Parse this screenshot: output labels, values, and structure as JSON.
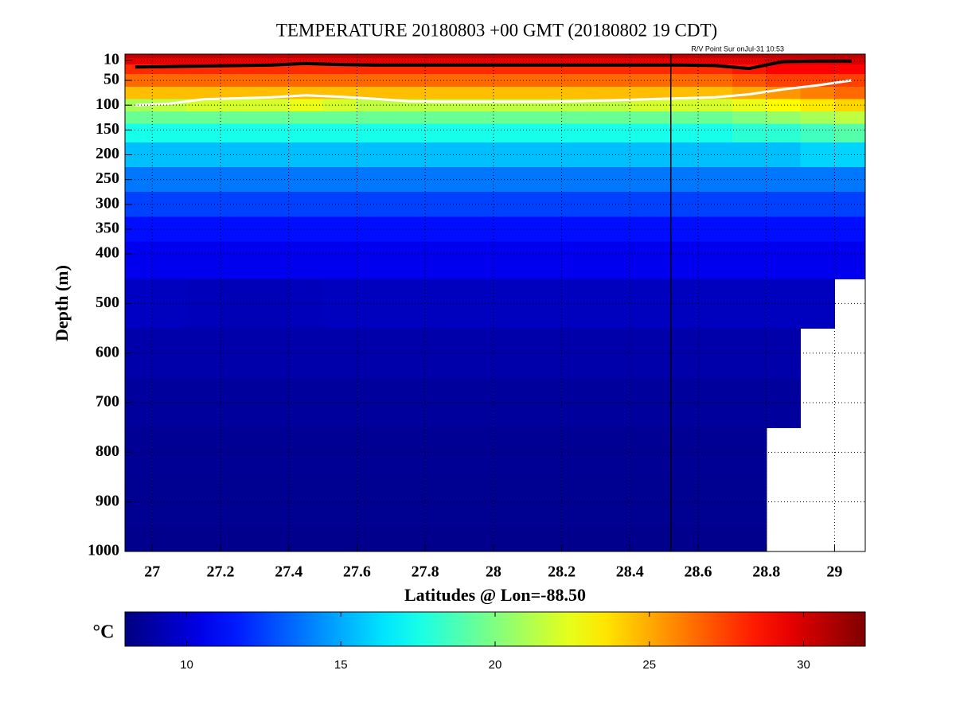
{
  "chart_data": {
    "type": "heatmap",
    "title": "TEMPERATURE 20180803 +00 GMT (20180802 19 CDT)",
    "annotation": "R/V Point Sur onJul-31 10:53",
    "xlabel": "Latitudes @ Lon=-88.50",
    "ylabel": "Depth (m)",
    "colorbar_label": "°C",
    "colormap": "jet",
    "xlim": [
      26.92,
      29.09
    ],
    "xticks": [
      27,
      27.2,
      27.4,
      27.6,
      27.8,
      28,
      28.2,
      28.4,
      28.6,
      28.8,
      29
    ],
    "ylim": [
      1000,
      -3
    ],
    "yticks": [
      10,
      50,
      100,
      150,
      200,
      250,
      300,
      350,
      400,
      500,
      600,
      700,
      800,
      900,
      1000
    ],
    "clim": [
      8,
      32
    ],
    "cticks": [
      10,
      15,
      20,
      25,
      30
    ],
    "grid": true,
    "station_lat": 28.52,
    "x": [
      26.95,
      27.05,
      27.15,
      27.25,
      27.35,
      27.45,
      27.55,
      27.65,
      27.75,
      27.85,
      27.95,
      28.05,
      28.15,
      28.25,
      28.35,
      28.45,
      28.55,
      28.65,
      28.75,
      28.85,
      28.95,
      29.05
    ],
    "y": [
      0,
      10,
      25,
      50,
      75,
      100,
      125,
      150,
      200,
      250,
      300,
      350,
      400,
      500,
      600,
      700,
      800,
      900,
      1000
    ],
    "values": [
      [
        30.5,
        30.5,
        30.5,
        30.5,
        30.5,
        30.5,
        30.5,
        30.5,
        30.5,
        30.5,
        30.5,
        30.5,
        30.5,
        30.5,
        30.5,
        30.5,
        30.5,
        30.5,
        30.5,
        30.5,
        30.5,
        30.5
      ],
      [
        29.5,
        29.5,
        29.5,
        29.5,
        29.5,
        29.5,
        29.5,
        29.5,
        29.5,
        29.5,
        29.5,
        29.5,
        29.5,
        29.5,
        29.5,
        29.5,
        29.5,
        29.5,
        29.5,
        30,
        30,
        30
      ],
      [
        28,
        28,
        28,
        28,
        28,
        28,
        28,
        28,
        28,
        28,
        28,
        28,
        28,
        28,
        28,
        28,
        28,
        28,
        28.5,
        29,
        29,
        29
      ],
      [
        26.5,
        26.5,
        26.5,
        26.5,
        26.5,
        26.5,
        26.5,
        26.5,
        26.5,
        26.5,
        26.5,
        26.5,
        26.5,
        26.5,
        26.5,
        26.5,
        26.5,
        26.5,
        27,
        27.5,
        27.5,
        27.5
      ],
      [
        24.5,
        24.5,
        24.5,
        24.5,
        24.5,
        24.5,
        24.5,
        24.5,
        24.5,
        24.5,
        24.5,
        24.5,
        24.5,
        24.5,
        24.5,
        24.5,
        24.5,
        24.5,
        25,
        25.5,
        26,
        26.5
      ],
      [
        21,
        21.5,
        22,
        22,
        22,
        22.5,
        22,
        21.5,
        21.5,
        21.5,
        21.5,
        21.5,
        21.5,
        21.5,
        21.5,
        22,
        22,
        22,
        22.5,
        23,
        23.5,
        24
      ],
      [
        19.5,
        19.5,
        19.5,
        19.5,
        19.5,
        19.5,
        19.5,
        19.5,
        19.5,
        19.5,
        19.5,
        19.5,
        19.5,
        19.5,
        19.5,
        19.5,
        19.5,
        19.5,
        20,
        20.5,
        21,
        21.5
      ],
      [
        17.5,
        17.5,
        17.5,
        17.5,
        17.5,
        17.5,
        17.5,
        17.5,
        17.5,
        17.5,
        17.5,
        17.5,
        17.5,
        17.5,
        17.5,
        17.5,
        17.5,
        17.5,
        18,
        18,
        18.5,
        19
      ],
      [
        15.5,
        15.5,
        15.5,
        15.5,
        15.5,
        15.5,
        15.5,
        15.5,
        15.5,
        15.5,
        15.5,
        15.5,
        15.5,
        15.5,
        15.5,
        15.5,
        15.5,
        15.5,
        15.5,
        15.5,
        16,
        16
      ],
      [
        13.8,
        13.8,
        13.8,
        13.8,
        13.8,
        13.8,
        13.8,
        13.8,
        13.8,
        13.8,
        13.8,
        13.8,
        13.8,
        13.8,
        13.8,
        13.8,
        13.8,
        13.8,
        13.8,
        13.8,
        13.8,
        13.8
      ],
      [
        12.5,
        12.5,
        12.5,
        12.5,
        12.5,
        12.5,
        12.5,
        12.5,
        12.5,
        12.5,
        12.5,
        12.5,
        12.5,
        12.5,
        12.5,
        12.5,
        12.5,
        12.5,
        12.5,
        12.5,
        12.5,
        12.5
      ],
      [
        11.3,
        11.3,
        11.3,
        11.3,
        11.3,
        11.3,
        11.3,
        11.3,
        11.3,
        11.3,
        11.3,
        11.3,
        11.3,
        11.3,
        11.3,
        11.3,
        11.3,
        11.3,
        11.3,
        11.3,
        11.3,
        11.3
      ],
      [
        10.6,
        10.6,
        10.6,
        10.6,
        10.6,
        10.6,
        10.6,
        10.6,
        10.6,
        10.6,
        10.6,
        10.6,
        10.6,
        10.6,
        10.6,
        10.6,
        10.6,
        10.6,
        10.6,
        10.6,
        10.6,
        10.6
      ],
      [
        9.6,
        9.5,
        9.4,
        9.3,
        9.3,
        9.4,
        9.5,
        9.5,
        9.5,
        9.5,
        9.5,
        9.5,
        9.5,
        9.5,
        9.5,
        9.5,
        9.5,
        9.5,
        9.5,
        9.5,
        9.5,
        null
      ],
      [
        9,
        9,
        9,
        9,
        9,
        9,
        9,
        9,
        9,
        9,
        9,
        9,
        9,
        9,
        9,
        9,
        9,
        9,
        9,
        9,
        null,
        null
      ],
      [
        8.7,
        8.7,
        8.7,
        8.7,
        8.7,
        8.7,
        8.7,
        8.7,
        8.7,
        8.7,
        8.7,
        8.7,
        8.7,
        8.7,
        8.7,
        8.7,
        8.7,
        8.7,
        8.7,
        8.7,
        null,
        null
      ],
      [
        8.5,
        8.5,
        8.5,
        8.5,
        8.5,
        8.5,
        8.5,
        8.5,
        8.5,
        8.5,
        8.5,
        8.5,
        8.5,
        8.5,
        8.5,
        8.5,
        8.5,
        8.5,
        8.5,
        null,
        null,
        null
      ],
      [
        8.4,
        8.4,
        8.4,
        8.4,
        8.4,
        8.4,
        8.4,
        8.4,
        8.4,
        8.4,
        8.4,
        8.4,
        8.4,
        8.4,
        8.4,
        8.4,
        8.4,
        8.4,
        8.4,
        null,
        null,
        null
      ],
      [
        8.3,
        8.3,
        8.3,
        8.3,
        8.3,
        8.3,
        8.3,
        8.3,
        8.3,
        8.3,
        8.3,
        8.3,
        8.3,
        8.3,
        8.3,
        8.3,
        8.3,
        8.3,
        8.3,
        null,
        null,
        null
      ]
    ],
    "contours": [
      {
        "color": "#000000",
        "values": [
          23,
          22,
          21,
          20,
          19,
          16,
          18,
          19,
          19,
          19,
          19,
          19,
          19,
          19,
          19,
          19,
          19,
          20,
          26,
          12,
          11,
          11
        ]
      },
      {
        "color": "#ffffff",
        "values": [
          100,
          97,
          88,
          86,
          84,
          80,
          83,
          87,
          92,
          93,
          93,
          93,
          93,
          92,
          90,
          88,
          86,
          84,
          78,
          68,
          60,
          50
        ]
      }
    ]
  }
}
